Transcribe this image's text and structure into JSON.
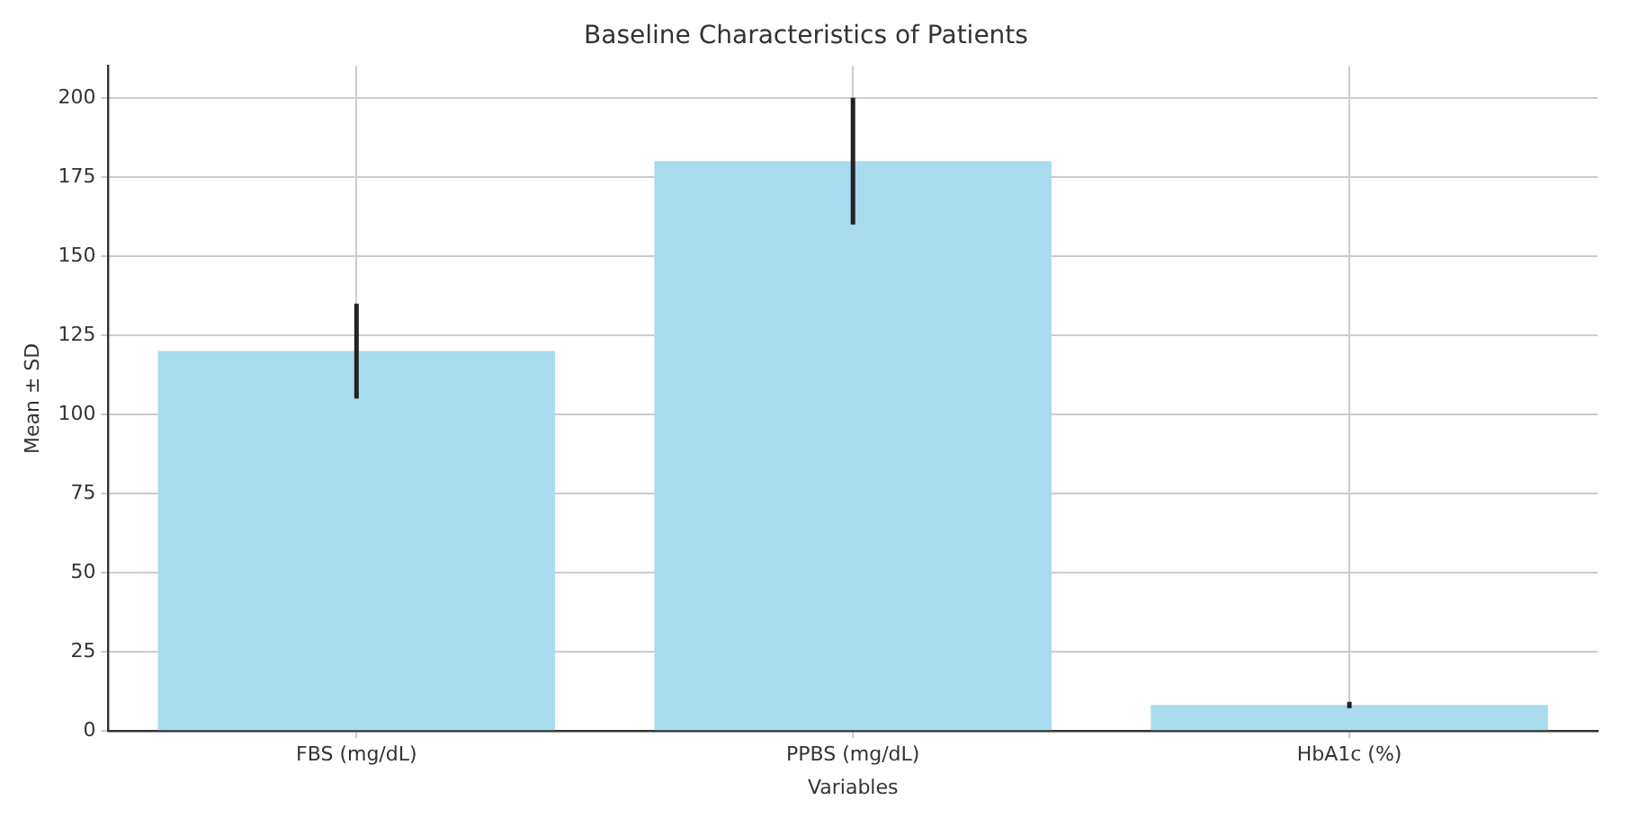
{
  "chart_data": {
    "type": "bar",
    "title": "Baseline Characteristics of Patients",
    "xlabel": "Variables",
    "ylabel": "Mean ± SD",
    "categories": [
      "FBS (mg/dL)",
      "PPBS (mg/dL)",
      "HbA1c (%)"
    ],
    "values": [
      120,
      180,
      8.2
    ],
    "errors": [
      15,
      20,
      1
    ],
    "color": "#a8dbed",
    "ylim": [
      0,
      210
    ],
    "yticks": [
      0,
      25,
      50,
      75,
      100,
      125,
      150,
      175,
      200
    ],
    "grid": true,
    "legend": false
  }
}
